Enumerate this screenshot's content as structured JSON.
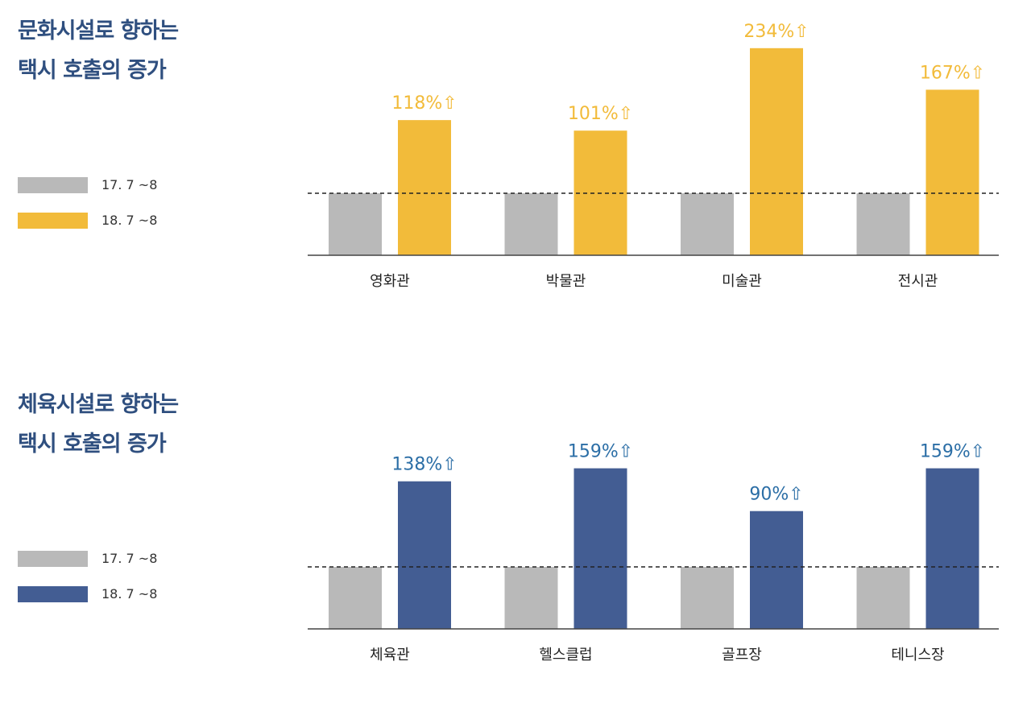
{
  "chart_data": [
    {
      "type": "bar",
      "title_lines": [
        "문화시설로 향하는",
        "택시 호출의 증가"
      ],
      "categories": [
        "영화관",
        "박물관",
        "미술관",
        "전시관"
      ],
      "series": [
        {
          "name": "17. 7 ~8",
          "color": "#b9b9b9",
          "values": [
            100,
            100,
            100,
            100
          ]
        },
        {
          "name": "18. 7 ~8",
          "color": "#f2bb3a",
          "values": [
            218,
            201,
            334,
            267
          ]
        }
      ],
      "annotations": [
        "118%⇧",
        "101%⇧",
        "234%⇧",
        "167%⇧"
      ],
      "annotation_color": "#f2bb3a",
      "baseline": "dashed line at 17. 7 ~8 level",
      "legend_position": "left"
    },
    {
      "type": "bar",
      "title_lines": [
        "체육시설로 향하는",
        "택시 호출의 증가"
      ],
      "categories": [
        "체육관",
        "헬스클럽",
        "골프장",
        "테니스장"
      ],
      "series": [
        {
          "name": "17. 7 ~8",
          "color": "#b9b9b9",
          "values": [
            100,
            100,
            100,
            100
          ]
        },
        {
          "name": "18. 7 ~8",
          "color": "#435d93",
          "values": [
            238,
            259,
            190,
            259
          ]
        }
      ],
      "annotations": [
        "138%⇧",
        "159%⇧",
        "90%⇧",
        "159%⇧"
      ],
      "annotation_color": "#2b6ea6",
      "baseline": "dashed line at 17. 7 ~8 level",
      "legend_position": "left"
    }
  ]
}
